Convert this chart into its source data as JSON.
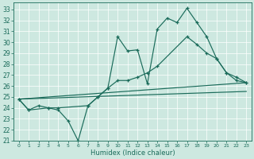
{
  "xlabel": "Humidex (Indice chaleur)",
  "xlim": [
    -0.5,
    23.5
  ],
  "ylim": [
    21,
    33.6
  ],
  "yticks": [
    21,
    22,
    23,
    24,
    25,
    26,
    27,
    28,
    29,
    30,
    31,
    32,
    33
  ],
  "xticks": [
    0,
    1,
    2,
    3,
    4,
    5,
    6,
    7,
    8,
    9,
    10,
    11,
    12,
    13,
    14,
    15,
    16,
    17,
    18,
    19,
    20,
    21,
    22,
    23
  ],
  "bg_color": "#cde8e0",
  "line_color": "#1a6b5a",
  "line1_x": [
    0,
    1,
    2,
    3,
    4,
    5,
    6,
    7,
    8,
    9,
    10,
    11,
    12,
    13,
    14,
    15,
    16,
    17,
    18,
    19,
    20,
    21,
    22,
    23
  ],
  "line1_y": [
    24.8,
    23.8,
    24.2,
    24.0,
    23.8,
    22.8,
    21.0,
    24.2,
    25.0,
    25.8,
    30.5,
    29.2,
    29.3,
    26.2,
    31.2,
    32.2,
    31.8,
    33.1,
    31.8,
    30.5,
    28.5,
    27.2,
    26.5,
    26.3
  ],
  "line2_x": [
    0,
    1,
    3,
    4,
    7,
    8,
    9,
    10,
    11,
    12,
    13,
    14,
    17,
    18,
    19,
    20,
    21,
    22,
    23
  ],
  "line2_y": [
    24.8,
    23.8,
    24.0,
    24.0,
    24.2,
    25.0,
    25.8,
    26.5,
    26.5,
    26.8,
    27.2,
    27.8,
    30.5,
    29.8,
    29.0,
    28.5,
    27.2,
    26.8,
    26.3
  ],
  "line3_x": [
    0,
    23
  ],
  "line3_y": [
    24.8,
    26.3
  ],
  "line4_x": [
    0,
    23
  ],
  "line4_y": [
    24.8,
    25.5
  ]
}
